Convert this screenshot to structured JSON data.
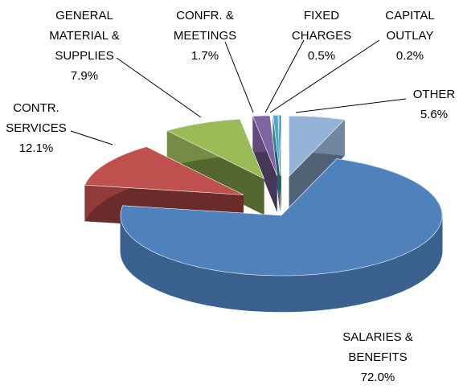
{
  "chart_data": {
    "type": "pie",
    "categories": [
      "OTHER",
      "SALARIES &\nBENEFITS",
      "CONTR.\nSERVICES",
      "GENERAL\nMATERIAL &\nSUPPLIES",
      "CONFR. &\nMEETINGS",
      "FIXED\nCHARGES",
      "CAPITAL\nOUTLAY"
    ],
    "values": [
      5.6,
      72.0,
      12.1,
      7.9,
      1.7,
      0.5,
      0.2
    ],
    "value_labels": [
      "5.6%",
      "72.0%",
      "12.1%",
      "7.9%",
      "1.7%",
      "0.5%",
      "0.2%"
    ],
    "colors": [
      "#95b3d7",
      "#4f81bd",
      "#c0504d",
      "#9bbb59",
      "#8064a2",
      "#4bacc6",
      "#1f7f8f"
    ]
  }
}
